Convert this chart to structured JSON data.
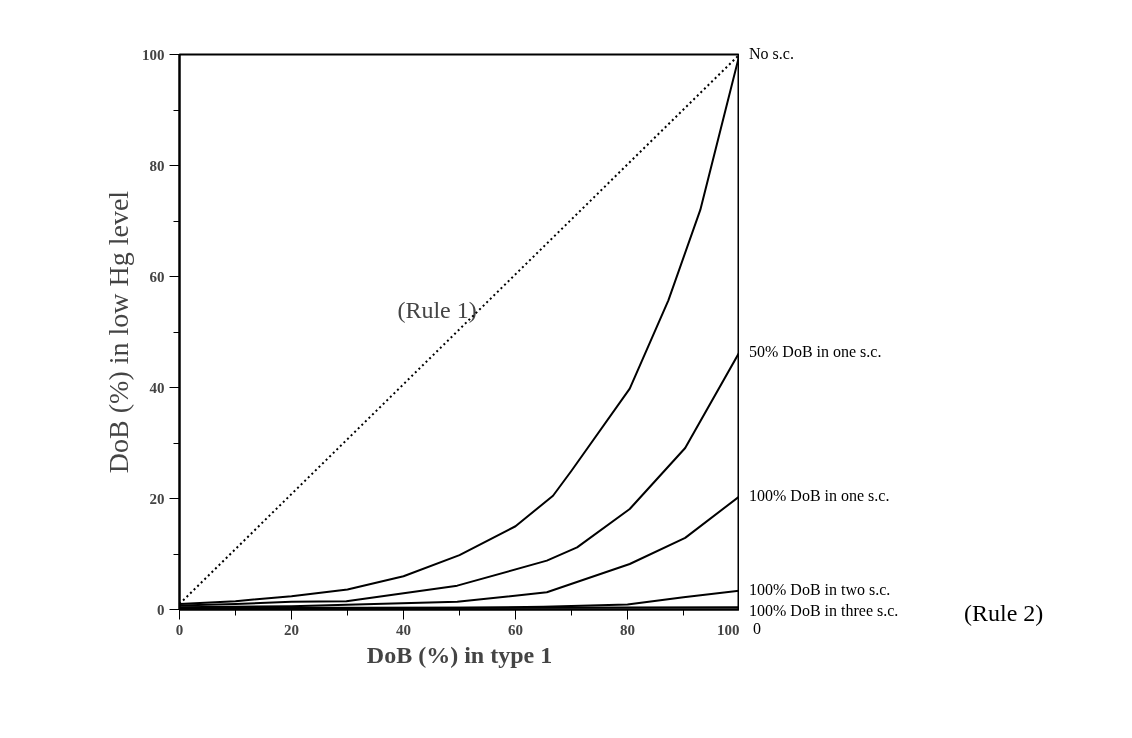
{
  "chart_data": {
    "type": "line",
    "xlabel": "DoB (%) in type 1",
    "ylabel": "DoB (%) in low Hg level",
    "xlim": [
      0,
      100
    ],
    "ylim": [
      0,
      100
    ],
    "xticks": [
      0,
      {
        "value": 10,
        "label": null
      },
      20,
      {
        "value": 30,
        "label": null
      },
      40,
      {
        "value": 50,
        "label": null
      },
      60,
      {
        "value": 70,
        "label": null
      },
      80,
      {
        "value": 90,
        "label": null
      },
      100
    ],
    "yticks": [
      0,
      {
        "value": 10,
        "label": null
      },
      20,
      {
        "value": 30,
        "label": null
      },
      40,
      {
        "value": 50,
        "label": null
      },
      60,
      {
        "value": 70,
        "label": null
      },
      80,
      {
        "value": 90,
        "label": null
      },
      100
    ],
    "grid": false,
    "marker": "none",
    "series": [
      {
        "color": "#000000",
        "line_style": "dotted",
        "x": [
          0,
          100
        ],
        "values": [
          1,
          100
        ]
      },
      {
        "name": "No s.c.",
        "color": "#000000",
        "x": [
          0,
          10,
          20,
          30,
          40,
          50,
          60,
          66.7,
          70,
          80.4,
          87.3,
          93,
          100
        ],
        "values": [
          1,
          1.5,
          2.4,
          3.6,
          6,
          9.8,
          15,
          20.5,
          25,
          39.8,
          55.7,
          72,
          100
        ]
      },
      {
        "name": "50% DoB in one s.c.",
        "color": "#000000",
        "x": [
          0,
          10,
          20,
          29.8,
          49.6,
          65.6,
          71,
          80.4,
          90.3,
          100
        ],
        "values": [
          0.7,
          1,
          1.4,
          1.5,
          4.3,
          8.8,
          11.2,
          18.1,
          29.1,
          46.4
        ]
      },
      {
        "name": "100% DoB in one s.c.",
        "color": "#000000",
        "x": [
          0,
          20,
          49.6,
          65.6,
          80.4,
          90.3,
          100
        ],
        "values": [
          0.4,
          0.6,
          1.4,
          3.1,
          8.2,
          12.9,
          20.4
        ]
      },
      {
        "name": "100% DoB in two s.c.",
        "color": "#000000",
        "x": [
          0,
          50,
          65,
          80,
          90,
          100
        ],
        "values": [
          0.2,
          0.3,
          0.5,
          0.9,
          2.2,
          3.4
        ]
      },
      {
        "name": "100% DoB in three s.c.",
        "color": "#000000",
        "x": [
          0,
          50,
          100
        ],
        "values": [
          0.3,
          0.3,
          0.4
        ]
      }
    ],
    "annotations": [
      "(Rule 1)",
      "(Rule 2)",
      "0"
    ]
  }
}
